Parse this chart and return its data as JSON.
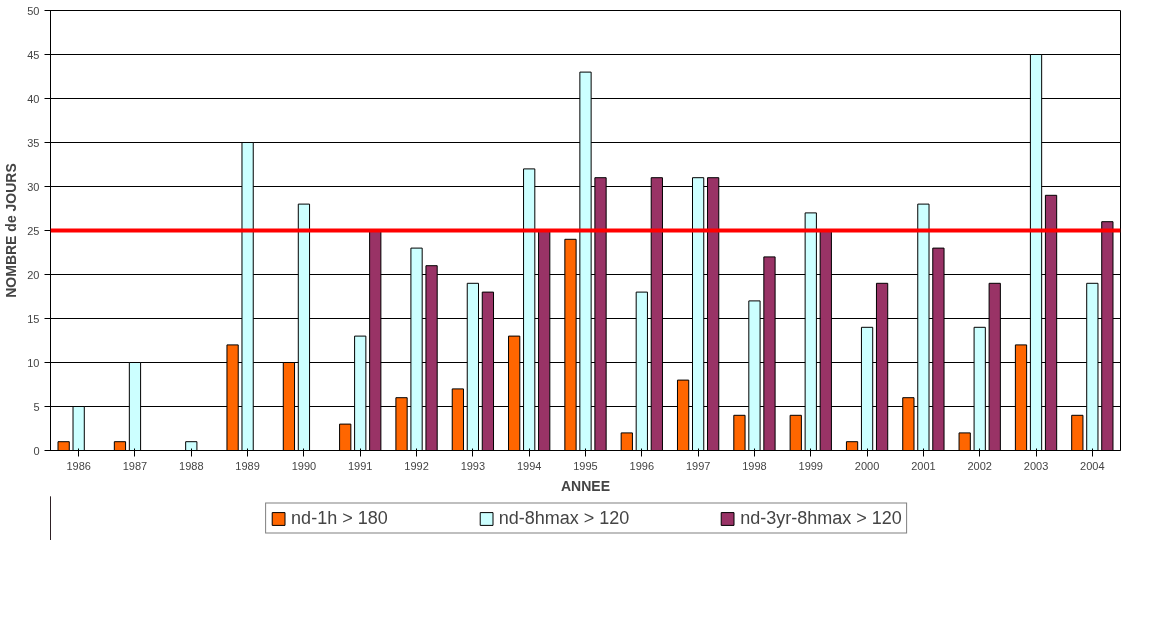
{
  "chart_data": {
    "type": "bar",
    "xlabel": "ANNEE",
    "ylabel": "NOMBRE de JOURS",
    "categories": [
      "1986",
      "1987",
      "1988",
      "1989",
      "1990",
      "1991",
      "1992",
      "1993",
      "1994",
      "1995",
      "1996",
      "1997",
      "1998",
      "1999",
      "2000",
      "2001",
      "2002",
      "2003",
      "2004"
    ],
    "series": [
      {
        "name": "nd-1h > 180",
        "color": "#ff6600",
        "values": [
          1,
          1,
          null,
          12,
          10,
          3,
          6,
          7,
          13,
          24,
          2,
          8,
          4,
          4,
          1,
          6,
          2,
          12,
          4
        ]
      },
      {
        "name": "nd-8hmax > 120",
        "color": "#ccffff",
        "values": [
          5,
          10,
          1,
          35,
          28,
          13,
          23,
          19,
          32,
          43,
          18,
          31,
          17,
          27,
          14,
          28,
          14,
          45,
          19
        ]
      },
      {
        "name": "nd-3yr-8hmax > 120",
        "color": "#993366",
        "values": [
          null,
          null,
          null,
          null,
          null,
          25,
          21,
          18,
          25,
          31,
          31,
          31,
          22,
          25,
          19,
          23,
          19,
          29,
          26
        ]
      }
    ],
    "ylim": [
      0,
      50
    ],
    "yticks": [
      0,
      5,
      10,
      15,
      20,
      25,
      30,
      35,
      40,
      45,
      50
    ],
    "ref_lines": [
      {
        "axis": "y",
        "value": 25,
        "color": "#ff0000"
      }
    ],
    "grid": "y",
    "legend": "bottom"
  }
}
